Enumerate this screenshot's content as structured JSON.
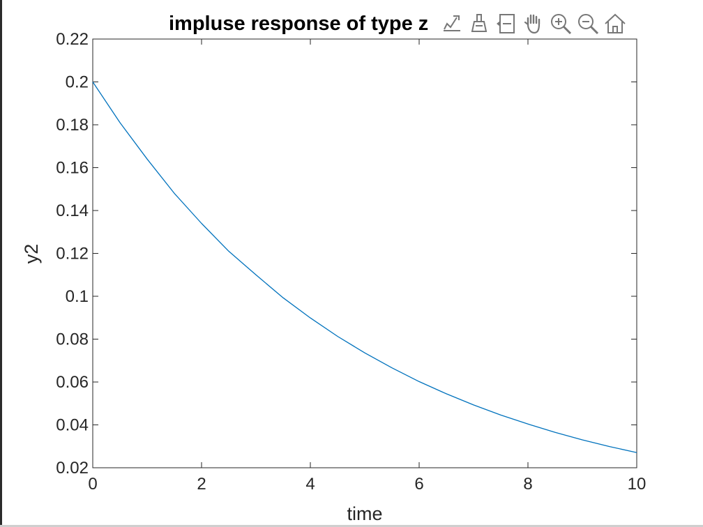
{
  "chart_data": {
    "type": "line",
    "title": "impluse response of type z",
    "xlabel": "time",
    "ylabel": "y2",
    "xlim": [
      0,
      10
    ],
    "ylim": [
      0.02,
      0.22
    ],
    "xticks": [
      0,
      2,
      4,
      6,
      8,
      10
    ],
    "xtick_labels": [
      "0",
      "2",
      "4",
      "6",
      "8",
      "10"
    ],
    "yticks": [
      0.02,
      0.04,
      0.06,
      0.08,
      0.1,
      0.12,
      0.14,
      0.16,
      0.18,
      0.2,
      0.22
    ],
    "ytick_labels": [
      "0.02",
      "0.04",
      "0.06",
      "0.08",
      "0.1",
      "0.12",
      "0.14",
      "0.16",
      "0.18",
      "0.2",
      "0.22"
    ],
    "grid": false,
    "series": [
      {
        "color": "#0072bd",
        "x": [
          0,
          0.5,
          1,
          1.5,
          2,
          2.5,
          3,
          3.5,
          4,
          4.5,
          5,
          5.5,
          6,
          6.5,
          7,
          7.5,
          8,
          8.5,
          9,
          9.5,
          10
        ],
        "y": [
          0.2,
          0.181,
          0.164,
          0.148,
          0.134,
          0.121,
          0.11,
          0.0993,
          0.0899,
          0.0813,
          0.0736,
          0.0666,
          0.0602,
          0.0545,
          0.0493,
          0.0446,
          0.0404,
          0.0365,
          0.033,
          0.0299,
          0.0271
        ]
      }
    ]
  },
  "toolbar": {
    "icons": [
      "data-tips-icon",
      "brush-icon",
      "data-cursor-icon",
      "pan-hand-icon",
      "zoom-in-icon",
      "zoom-out-icon",
      "home-icon"
    ]
  }
}
